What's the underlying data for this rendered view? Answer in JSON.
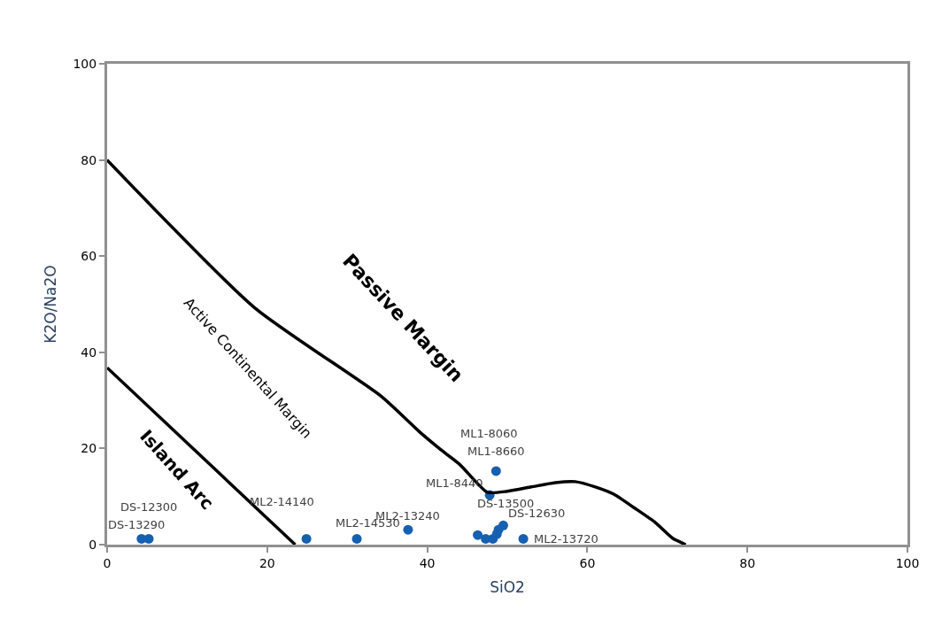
{
  "chart_data": {
    "type": "scatter",
    "xlabel": "SiO2",
    "ylabel": "K2O/Na2O",
    "xlim": [
      0,
      100
    ],
    "ylim": [
      0,
      100
    ],
    "xticks": [
      0,
      20,
      40,
      60,
      80,
      100
    ],
    "yticks": [
      0,
      20,
      40,
      60,
      80,
      100
    ],
    "marker": "circle",
    "series": [
      {
        "color": "#1560b0",
        "x": [
          4.3,
          5.2,
          24.9,
          31.2,
          37.6,
          46.3,
          47.3,
          48.2,
          48.7,
          48.9,
          49.5,
          47.8,
          48.6,
          52.0
        ],
        "values": [
          1.2,
          1.2,
          1.2,
          1.2,
          3.1,
          2.0,
          1.2,
          1.2,
          2.2,
          3.1,
          4.0,
          10.3,
          15.3,
          1.2
        ]
      },
      {
        "type": "line",
        "color": "#000000",
        "marker": "none",
        "line_style": "solid",
        "x": [
          0,
          23.5
        ],
        "values": [
          36.8,
          0
        ]
      },
      {
        "type": "line",
        "color": "#000000",
        "marker": "none",
        "line_style": "solid",
        "x": [
          0,
          18.4,
          34.2,
          39,
          41.5,
          44.1,
          47.5,
          50,
          53,
          56,
          58.5,
          61,
          63.3,
          66,
          68.5,
          70.7,
          72.3
        ],
        "values": [
          80,
          49.3,
          30.9,
          23.5,
          20,
          16.6,
          10.9,
          11.1,
          12.0,
          12.9,
          13.1,
          12.0,
          10.5,
          7.5,
          4.6,
          1.3,
          0
        ]
      }
    ],
    "annotations": [
      {
        "text": "ML1-8060",
        "x": 48.6,
        "y": 15.3
      },
      {
        "text": "ML1-8660",
        "x": 48.6,
        "y": 15.3
      },
      {
        "text": "ML1-8440",
        "x": 47.8,
        "y": 10.3
      },
      {
        "text": "DS-13500",
        "x": 48.9,
        "y": 3.1
      },
      {
        "text": "DS-12630",
        "x": 49.5,
        "y": 4.0
      },
      {
        "text": "ML2-13720",
        "x": 52.0,
        "y": 1.2
      },
      {
        "text": "ML2-13240",
        "x": 37.6,
        "y": 3.1
      },
      {
        "text": "ML2-14530",
        "x": 31.2,
        "y": 1.2
      },
      {
        "text": "ML2-14140",
        "x": 24.9,
        "y": 1.2
      },
      {
        "text": "DS-12300",
        "x": 5.2,
        "y": 1.2
      },
      {
        "text": "DS-13290",
        "x": 4.3,
        "y": 1.2
      },
      "Passive Margin",
      "Active Continental Margin",
      "Island Arc"
    ]
  }
}
